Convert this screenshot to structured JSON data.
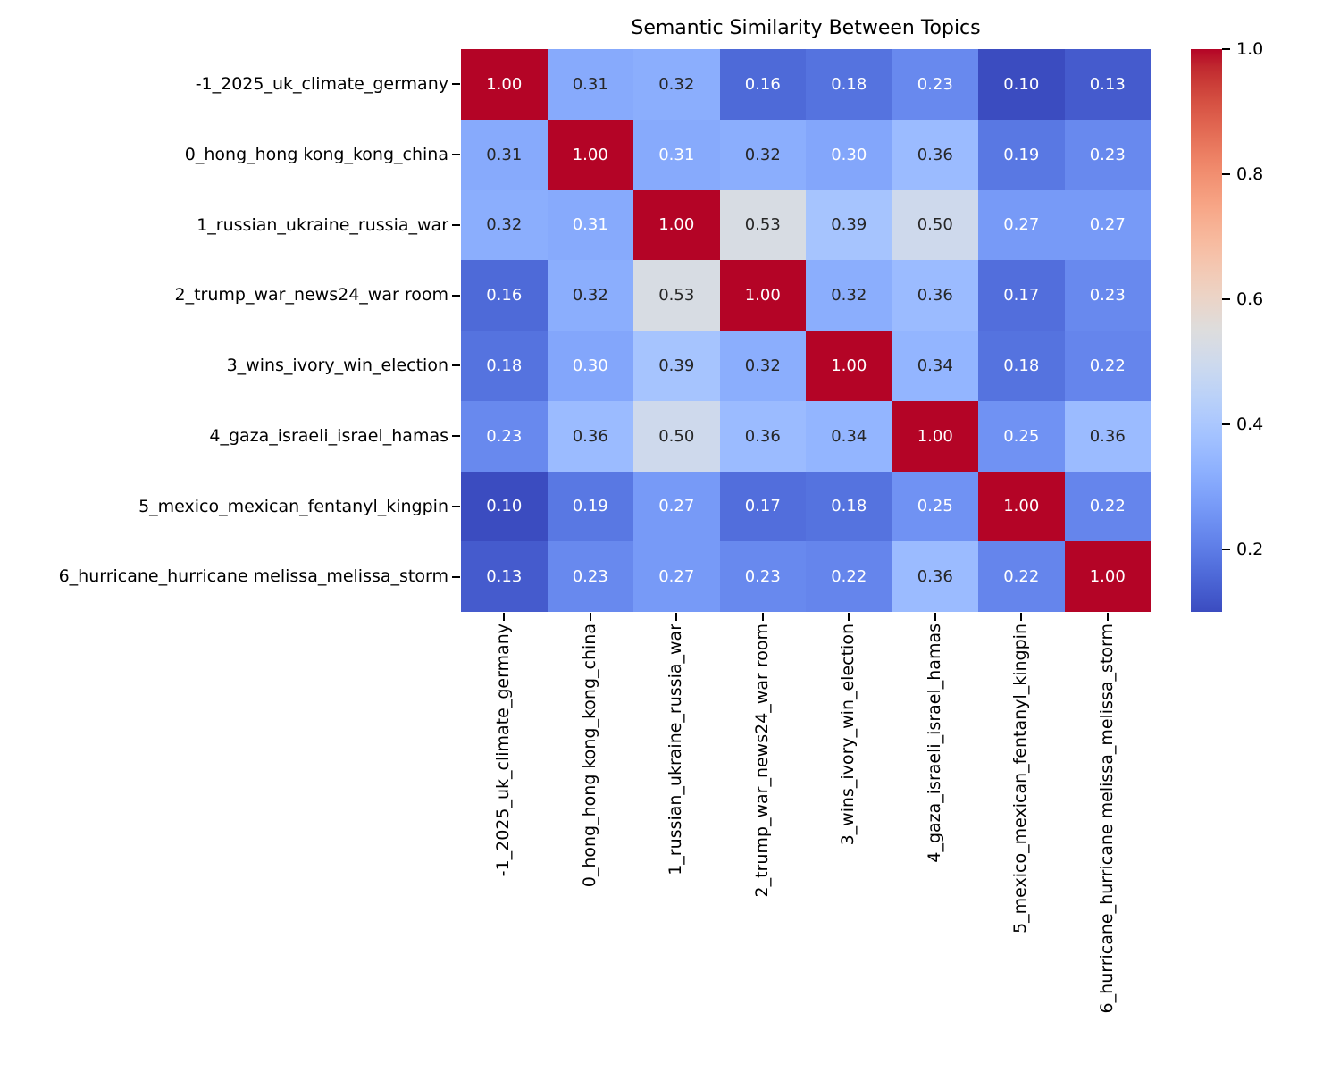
{
  "title": "Semantic Similarity Between Topics",
  "colors": {
    "background": "#ffffff",
    "axis_text": "#000000",
    "tick_mark": "#000000",
    "annotation_white": "#ffffff",
    "annotation_dark": "#262626",
    "colormap_min": "#3b4cc0",
    "colormap_mid": "#dddddd",
    "colormap_max": "#b40426"
  },
  "chart_data": {
    "type": "heatmap",
    "title": "Semantic Similarity Between Topics",
    "colormap": "coolwarm",
    "vmin": 0.1,
    "vmax": 1.0,
    "grid": false,
    "legend_position": "right",
    "value_format": "2dp",
    "labels": [
      "-1_2025_uk_climate_germany",
      "0_hong_hong kong_kong_china",
      "1_russian_ukraine_russia_war",
      "2_trump_war_news24_war room",
      "3_wins_ivory_win_election",
      "4_gaza_israeli_israel_hamas",
      "5_mexico_mexican_fentanyl_kingpin",
      "6_hurricane_hurricane melissa_melissa_storm"
    ],
    "matrix": [
      [
        1.0,
        0.31,
        0.32,
        0.16,
        0.18,
        0.23,
        0.1,
        0.13
      ],
      [
        0.31,
        1.0,
        0.31,
        0.32,
        0.3,
        0.36,
        0.19,
        0.23
      ],
      [
        0.32,
        0.31,
        1.0,
        0.53,
        0.39,
        0.5,
        0.27,
        0.27
      ],
      [
        0.16,
        0.32,
        0.53,
        1.0,
        0.32,
        0.36,
        0.17,
        0.23
      ],
      [
        0.18,
        0.3,
        0.39,
        0.32,
        1.0,
        0.34,
        0.18,
        0.22
      ],
      [
        0.23,
        0.36,
        0.5,
        0.36,
        0.34,
        1.0,
        0.25,
        0.36
      ],
      [
        0.1,
        0.19,
        0.27,
        0.17,
        0.18,
        0.25,
        1.0,
        0.22
      ],
      [
        0.13,
        0.23,
        0.27,
        0.23,
        0.22,
        0.36,
        0.22,
        1.0
      ]
    ],
    "text_colors": [
      [
        "w",
        "d",
        "d",
        "w",
        "w",
        "w",
        "w",
        "w"
      ],
      [
        "d",
        "w",
        "w",
        "d",
        "w",
        "d",
        "w",
        "w"
      ],
      [
        "d",
        "w",
        "w",
        "d",
        "d",
        "d",
        "w",
        "w"
      ],
      [
        "w",
        "d",
        "d",
        "w",
        "d",
        "d",
        "w",
        "w"
      ],
      [
        "w",
        "w",
        "d",
        "d",
        "w",
        "d",
        "w",
        "w"
      ],
      [
        "w",
        "d",
        "d",
        "d",
        "d",
        "w",
        "w",
        "d"
      ],
      [
        "w",
        "w",
        "w",
        "w",
        "w",
        "w",
        "w",
        "w"
      ],
      [
        "w",
        "w",
        "w",
        "w",
        "w",
        "d",
        "w",
        "w"
      ]
    ],
    "colorbar_ticks": [
      {
        "value": 1.0,
        "label": "1.0"
      },
      {
        "value": 0.8,
        "label": "0.8"
      },
      {
        "value": 0.6,
        "label": "0.6"
      },
      {
        "value": 0.4,
        "label": "0.4"
      },
      {
        "value": 0.2,
        "label": "0.2"
      }
    ]
  }
}
